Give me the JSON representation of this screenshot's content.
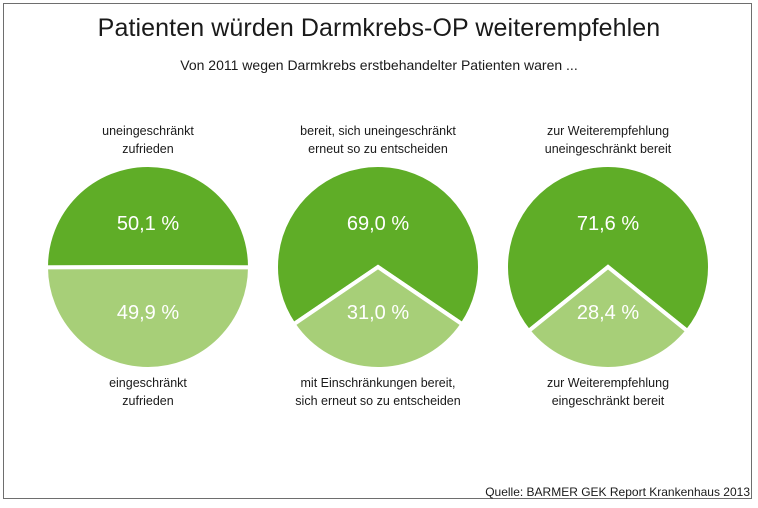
{
  "title": "Patienten würden Darmkrebs-OP weiterempfehlen",
  "subtitle": "Von 2011 wegen Darmkrebs erstbehandelter Patienten waren ...",
  "source": "Quelle: BARMER GEK Report Krankenhaus 2013",
  "colors": {
    "dark_green": "#5fad27",
    "light_green": "#a7cf78"
  },
  "chart_data": [
    {
      "type": "pie",
      "title": "",
      "slices": [
        {
          "label": "uneingeschränkt zufrieden",
          "value": 50.1,
          "value_label": "50,1 %",
          "color": "#5fad27"
        },
        {
          "label": "eingeschränkt zufrieden",
          "value": 49.9,
          "value_label": "49,9 %",
          "color": "#a7cf78"
        }
      ],
      "top_label_lines": [
        "uneingeschränkt",
        "zufrieden"
      ],
      "bottom_label_lines": [
        "eingeschränkt",
        "zufrieden"
      ]
    },
    {
      "type": "pie",
      "title": "",
      "slices": [
        {
          "label": "bereit, sich uneingeschränkt erneut so zu entscheiden",
          "value": 69.0,
          "value_label": "69,0 %",
          "color": "#5fad27"
        },
        {
          "label": "mit Einschränkungen bereit, sich erneut so zu entscheiden",
          "value": 31.0,
          "value_label": "31,0 %",
          "color": "#a7cf78"
        }
      ],
      "top_label_lines": [
        "bereit, sich uneingeschränkt",
        "erneut so zu entscheiden"
      ],
      "bottom_label_lines": [
        "mit Einschränkungen bereit,",
        "sich erneut so zu entscheiden"
      ]
    },
    {
      "type": "pie",
      "title": "",
      "slices": [
        {
          "label": "zur Weiterempfehlung uneingeschränkt bereit",
          "value": 71.6,
          "value_label": "71,6 %",
          "color": "#5fad27"
        },
        {
          "label": "zur Weiterempfehlung eingeschränkt bereit",
          "value": 28.4,
          "value_label": "28,4 %",
          "color": "#a7cf78"
        }
      ],
      "top_label_lines": [
        "zur Weiterempfehlung",
        "uneingeschränkt bereit"
      ],
      "bottom_label_lines": [
        "zur Weiterempfehlung",
        "eingeschränkt bereit"
      ]
    }
  ]
}
